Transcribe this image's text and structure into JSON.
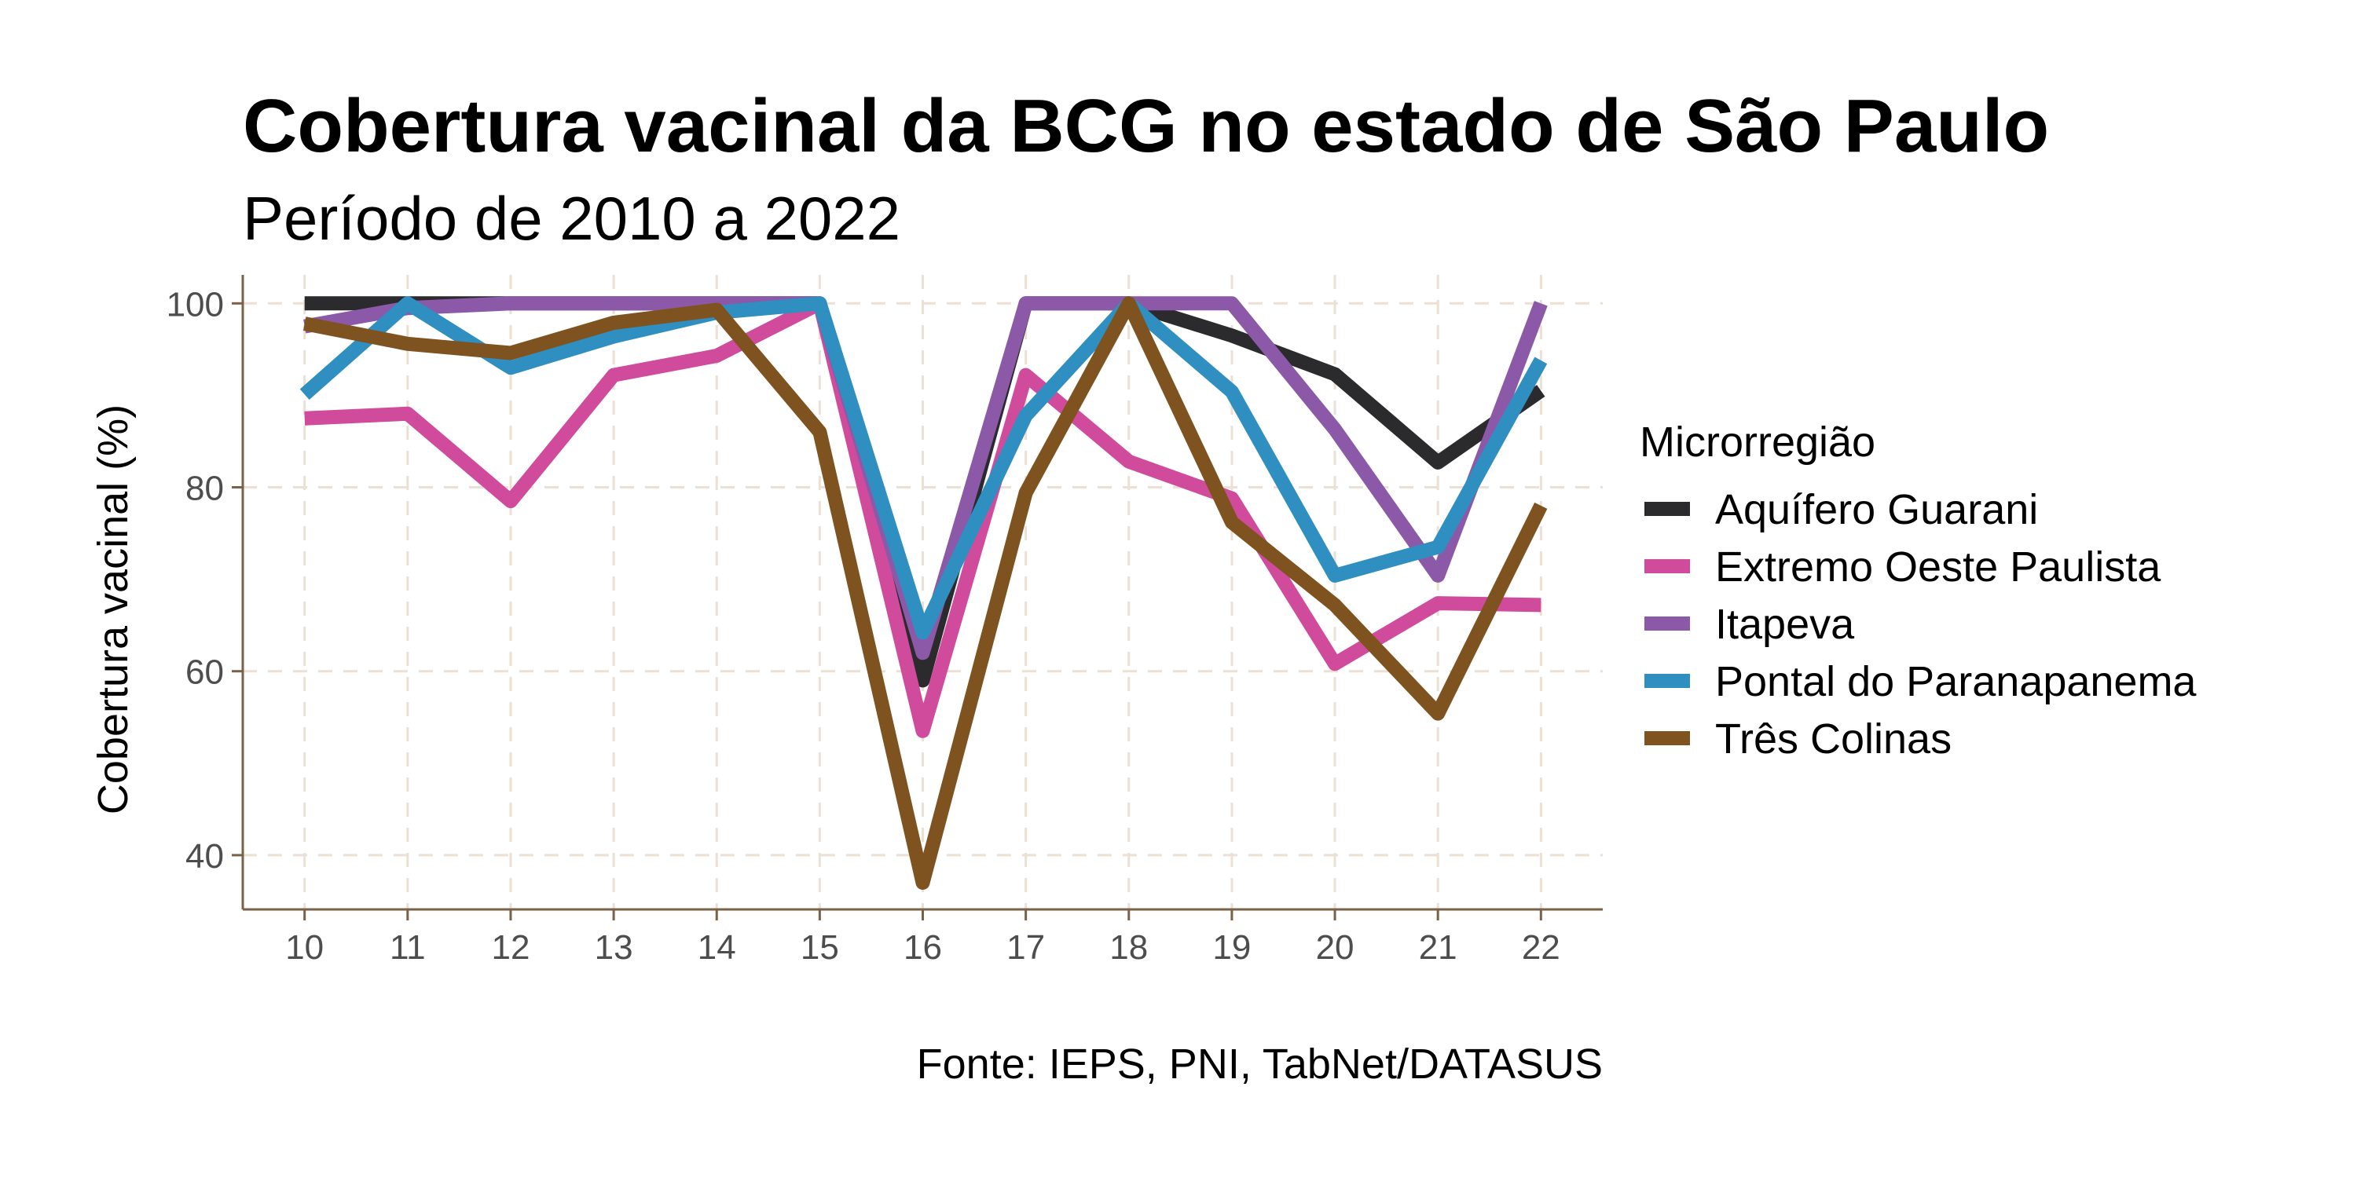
{
  "chart_data": {
    "type": "line",
    "title": "Cobertura vacinal da BCG no estado de São Paulo",
    "subtitle": "Período de 2010 a 2022",
    "xlabel": "",
    "ylabel": "Cobertura vacinal (%)",
    "caption": "Fonte: IEPS, PNI, TabNet/DATASUS",
    "x": [
      10,
      11,
      12,
      13,
      14,
      15,
      16,
      17,
      18,
      19,
      20,
      21,
      22
    ],
    "x_tick_labels": [
      "10",
      "11",
      "12",
      "13",
      "14",
      "15",
      "16",
      "17",
      "18",
      "19",
      "20",
      "21",
      "22"
    ],
    "y_ticks": [
      40,
      60,
      80,
      100
    ],
    "y_tick_labels": [
      "40",
      "60",
      "80",
      "100"
    ],
    "xlim": [
      9.4,
      22.6
    ],
    "ylim": [
      34.1,
      103.1
    ],
    "grid": true,
    "legend": {
      "title": "Microrregião",
      "position": "right"
    },
    "series": [
      {
        "name": "Aquífero Guarani",
        "color": "#2b2a2c",
        "values": [
          100,
          100,
          100,
          100,
          100,
          100,
          59,
          100,
          100,
          96.5,
          92.3,
          82.7,
          90.5
        ]
      },
      {
        "name": "Extremo Oeste Paulista",
        "color": "#d14b9c",
        "values": [
          87.5,
          88,
          78.5,
          92.2,
          94.3,
          100,
          53.5,
          92.2,
          82.8,
          78.8,
          60.8,
          67.4,
          67.2
        ]
      },
      {
        "name": "Itapeva",
        "color": "#8c59a8",
        "values": [
          97.5,
          99.5,
          100,
          100,
          100,
          100,
          62,
          100,
          100,
          100,
          86.3,
          70.4,
          100
        ]
      },
      {
        "name": "Pontal do Paranapanema",
        "color": "#2f8fc0",
        "values": [
          90.1,
          100,
          93,
          96.4,
          99,
          100,
          64.2,
          87.8,
          100,
          90.4,
          70.4,
          73.5,
          93.8
        ]
      },
      {
        "name": "Três Colinas",
        "color": "#7e531f",
        "values": [
          97.8,
          95.6,
          94.6,
          97.9,
          99.3,
          86,
          37,
          79.4,
          100,
          76.2,
          67.2,
          55.4,
          78
        ]
      }
    ]
  }
}
